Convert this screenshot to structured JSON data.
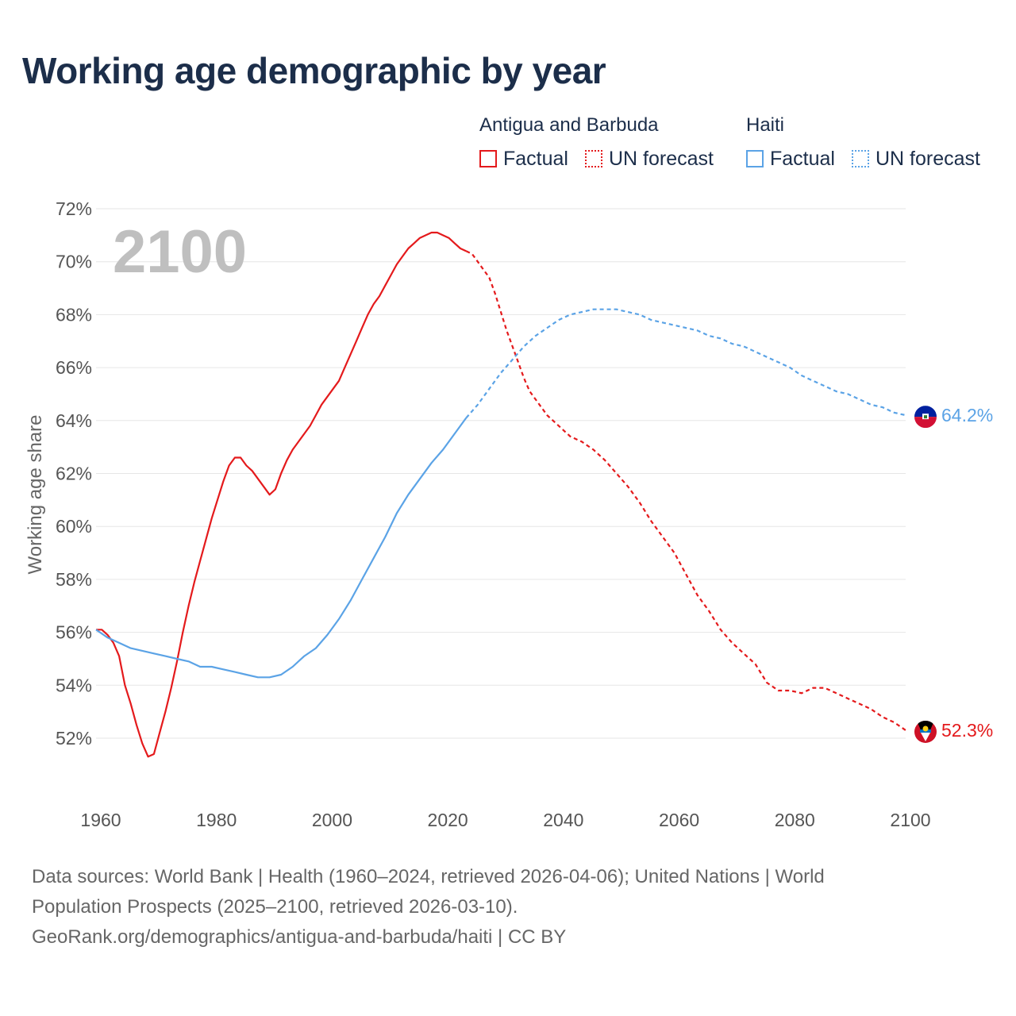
{
  "title": "Working age demographic by year",
  "legend": {
    "groups": [
      {
        "name": "Antigua and Barbuda",
        "color": "#e41a1c",
        "factual_label": "Factual",
        "forecast_label": "UN forecast"
      },
      {
        "name": "Haiti",
        "color": "#5ba3e6",
        "factual_label": "Factual",
        "forecast_label": "UN forecast"
      }
    ]
  },
  "year_label": "2100",
  "footer": {
    "line1": "Data sources: World Bank | Health (1960–2024, retrieved 2026-04-06); United Nations | World",
    "line2": "Population Prospects (2025–2100, retrieved 2026-03-10).",
    "line3": "GeoRank.org/demographics/antigua-and-barbuda/haiti | CC BY"
  },
  "chart_data": {
    "type": "line",
    "title": "Working age demographic by year",
    "xlabel": "",
    "ylabel": "Working age share",
    "xlim": [
      1960,
      2104
    ],
    "ylim": [
      50,
      72
    ],
    "x_ticks": [
      1960,
      1980,
      2000,
      2020,
      2040,
      2060,
      2080,
      2100
    ],
    "y_ticks": [
      52,
      54,
      56,
      58,
      60,
      62,
      64,
      66,
      68,
      70,
      72
    ],
    "y_tick_labels": [
      "52%",
      "54%",
      "56%",
      "58%",
      "60%",
      "62%",
      "64%",
      "66%",
      "68%",
      "70%",
      "72%"
    ],
    "grid": true,
    "factual_end_year": 2024,
    "series": [
      {
        "name": "Antigua and Barbuda",
        "color": "#e41a1c",
        "end_label": "52.3%",
        "points": [
          [
            1960,
            56.1
          ],
          [
            1961,
            56.1
          ],
          [
            1962,
            55.9
          ],
          [
            1963,
            55.6
          ],
          [
            1964,
            55.1
          ],
          [
            1965,
            54.0
          ],
          [
            1966,
            53.3
          ],
          [
            1967,
            52.5
          ],
          [
            1968,
            51.8
          ],
          [
            1969,
            51.3
          ],
          [
            1970,
            51.4
          ],
          [
            1971,
            52.2
          ],
          [
            1972,
            53.0
          ],
          [
            1973,
            53.9
          ],
          [
            1974,
            54.9
          ],
          [
            1975,
            56.0
          ],
          [
            1976,
            57.0
          ],
          [
            1977,
            57.9
          ],
          [
            1978,
            58.7
          ],
          [
            1979,
            59.5
          ],
          [
            1980,
            60.3
          ],
          [
            1981,
            61.0
          ],
          [
            1982,
            61.7
          ],
          [
            1983,
            62.3
          ],
          [
            1984,
            62.6
          ],
          [
            1985,
            62.6
          ],
          [
            1986,
            62.3
          ],
          [
            1987,
            62.1
          ],
          [
            1988,
            61.8
          ],
          [
            1989,
            61.5
          ],
          [
            1990,
            61.2
          ],
          [
            1991,
            61.4
          ],
          [
            1992,
            62.0
          ],
          [
            1993,
            62.5
          ],
          [
            1994,
            62.9
          ],
          [
            1995,
            63.2
          ],
          [
            1996,
            63.5
          ],
          [
            1997,
            63.8
          ],
          [
            1998,
            64.2
          ],
          [
            1999,
            64.6
          ],
          [
            2000,
            64.9
          ],
          [
            2001,
            65.2
          ],
          [
            2002,
            65.5
          ],
          [
            2003,
            66.0
          ],
          [
            2004,
            66.5
          ],
          [
            2005,
            67.0
          ],
          [
            2006,
            67.5
          ],
          [
            2007,
            68.0
          ],
          [
            2008,
            68.4
          ],
          [
            2009,
            68.7
          ],
          [
            2010,
            69.1
          ],
          [
            2011,
            69.5
          ],
          [
            2012,
            69.9
          ],
          [
            2013,
            70.2
          ],
          [
            2014,
            70.5
          ],
          [
            2015,
            70.7
          ],
          [
            2016,
            70.9
          ],
          [
            2017,
            71.0
          ],
          [
            2018,
            71.1
          ],
          [
            2019,
            71.1
          ],
          [
            2020,
            71.0
          ],
          [
            2021,
            70.9
          ],
          [
            2022,
            70.7
          ],
          [
            2023,
            70.5
          ],
          [
            2024,
            70.4
          ],
          [
            2025,
            70.3
          ],
          [
            2026,
            70.0
          ],
          [
            2027,
            69.7
          ],
          [
            2028,
            69.4
          ],
          [
            2029,
            68.8
          ],
          [
            2030,
            68.1
          ],
          [
            2031,
            67.4
          ],
          [
            2032,
            66.8
          ],
          [
            2033,
            66.2
          ],
          [
            2034,
            65.6
          ],
          [
            2035,
            65.1
          ],
          [
            2036,
            64.8
          ],
          [
            2037,
            64.5
          ],
          [
            2038,
            64.2
          ],
          [
            2039,
            64.0
          ],
          [
            2040,
            63.8
          ],
          [
            2042,
            63.4
          ],
          [
            2044,
            63.2
          ],
          [
            2046,
            62.9
          ],
          [
            2048,
            62.5
          ],
          [
            2050,
            62.0
          ],
          [
            2052,
            61.5
          ],
          [
            2054,
            60.9
          ],
          [
            2056,
            60.2
          ],
          [
            2058,
            59.6
          ],
          [
            2060,
            59.0
          ],
          [
            2062,
            58.2
          ],
          [
            2064,
            57.4
          ],
          [
            2066,
            56.8
          ],
          [
            2068,
            56.1
          ],
          [
            2070,
            55.6
          ],
          [
            2072,
            55.2
          ],
          [
            2074,
            54.8
          ],
          [
            2076,
            54.1
          ],
          [
            2078,
            53.8
          ],
          [
            2080,
            53.8
          ],
          [
            2082,
            53.7
          ],
          [
            2084,
            53.9
          ],
          [
            2086,
            53.9
          ],
          [
            2088,
            53.7
          ],
          [
            2090,
            53.5
          ],
          [
            2092,
            53.3
          ],
          [
            2094,
            53.1
          ],
          [
            2096,
            52.8
          ],
          [
            2098,
            52.6
          ],
          [
            2100,
            52.3
          ]
        ]
      },
      {
        "name": "Haiti",
        "color": "#5ba3e6",
        "end_label": "64.2%",
        "points": [
          [
            1960,
            56.1
          ],
          [
            1962,
            55.8
          ],
          [
            1964,
            55.6
          ],
          [
            1966,
            55.4
          ],
          [
            1968,
            55.3
          ],
          [
            1970,
            55.2
          ],
          [
            1972,
            55.1
          ],
          [
            1974,
            55.0
          ],
          [
            1976,
            54.9
          ],
          [
            1978,
            54.7
          ],
          [
            1980,
            54.7
          ],
          [
            1982,
            54.6
          ],
          [
            1984,
            54.5
          ],
          [
            1986,
            54.4
          ],
          [
            1988,
            54.3
          ],
          [
            1990,
            54.3
          ],
          [
            1992,
            54.4
          ],
          [
            1994,
            54.7
          ],
          [
            1996,
            55.1
          ],
          [
            1998,
            55.4
          ],
          [
            2000,
            55.9
          ],
          [
            2002,
            56.5
          ],
          [
            2004,
            57.2
          ],
          [
            2006,
            58.0
          ],
          [
            2008,
            58.8
          ],
          [
            2010,
            59.6
          ],
          [
            2012,
            60.5
          ],
          [
            2014,
            61.2
          ],
          [
            2016,
            61.8
          ],
          [
            2018,
            62.4
          ],
          [
            2020,
            62.9
          ],
          [
            2022,
            63.5
          ],
          [
            2024,
            64.1
          ],
          [
            2026,
            64.6
          ],
          [
            2028,
            65.2
          ],
          [
            2030,
            65.8
          ],
          [
            2032,
            66.3
          ],
          [
            2034,
            66.8
          ],
          [
            2036,
            67.2
          ],
          [
            2038,
            67.5
          ],
          [
            2040,
            67.8
          ],
          [
            2042,
            68.0
          ],
          [
            2044,
            68.1
          ],
          [
            2046,
            68.2
          ],
          [
            2048,
            68.2
          ],
          [
            2050,
            68.2
          ],
          [
            2052,
            68.1
          ],
          [
            2054,
            68.0
          ],
          [
            2056,
            67.8
          ],
          [
            2058,
            67.7
          ],
          [
            2060,
            67.6
          ],
          [
            2062,
            67.5
          ],
          [
            2064,
            67.4
          ],
          [
            2066,
            67.2
          ],
          [
            2068,
            67.1
          ],
          [
            2070,
            66.9
          ],
          [
            2072,
            66.8
          ],
          [
            2074,
            66.6
          ],
          [
            2076,
            66.4
          ],
          [
            2078,
            66.2
          ],
          [
            2080,
            66.0
          ],
          [
            2082,
            65.7
          ],
          [
            2084,
            65.5
          ],
          [
            2086,
            65.3
          ],
          [
            2088,
            65.1
          ],
          [
            2090,
            65.0
          ],
          [
            2092,
            64.8
          ],
          [
            2094,
            64.6
          ],
          [
            2096,
            64.5
          ],
          [
            2098,
            64.3
          ],
          [
            2100,
            64.2
          ]
        ]
      }
    ]
  }
}
